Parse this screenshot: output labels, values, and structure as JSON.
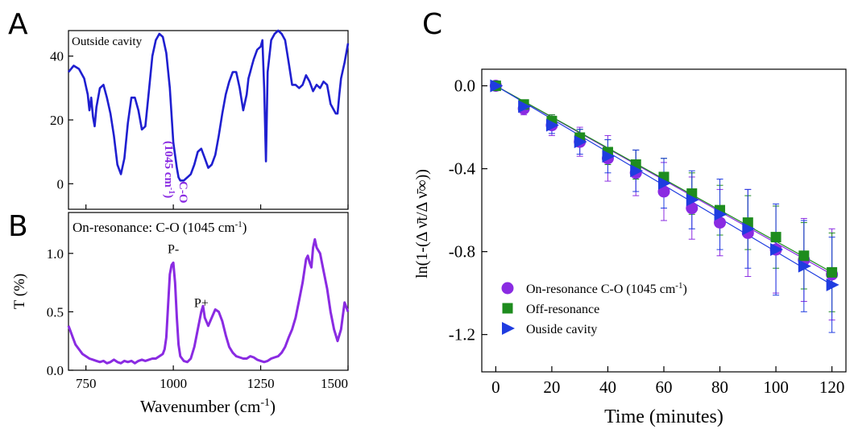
{
  "panel_letters": {
    "a": "A",
    "b": "B",
    "c": "C"
  },
  "panel_a": {
    "label": "Outside cavity"
  },
  "panel_b": {
    "title_main": "On-resonance: C-O (1045 cm",
    "title_sup": "-1",
    "title_end": ")"
  },
  "shared_x_axis": {
    "label": "Wavenumber (cm",
    "label_sup": "-1",
    "label_end": ")"
  },
  "panel_a_annotations": {
    "line1": "C-O",
    "line2_main": "(1045 cm",
    "line2_sup": "-1",
    "line2_end": ")"
  },
  "panel_b_y_axis": {
    "label": "T (%)"
  },
  "panel_c_y_axis": {
    "label": "ln(1-(Δ ν̄t/Δ ν̄∞))"
  },
  "colors": {
    "panel_a_line": "#1f1fd0",
    "panel_b_line": "#8a2be2",
    "on_resonance": "#8a2be2",
    "off_resonance": "#1e8c1e",
    "outside": "#1f3ce0"
  },
  "chart_data": [
    {
      "type": "line",
      "panel": "A",
      "xlim": [
        700,
        1500
      ],
      "ylim": [
        -8,
        48
      ],
      "yticks": [
        0,
        20,
        40
      ],
      "series": [
        {
          "x": [
            700,
            715,
            730,
            745,
            755,
            760,
            765,
            770,
            775,
            780,
            790,
            800,
            810,
            820,
            830,
            840,
            850,
            860,
            870,
            880,
            890,
            900,
            910,
            920,
            930,
            940,
            950,
            960,
            970,
            980,
            990,
            1000,
            1010,
            1015,
            1020,
            1025,
            1030,
            1040,
            1050,
            1060,
            1070,
            1080,
            1090,
            1100,
            1110,
            1120,
            1130,
            1140,
            1150,
            1160,
            1170,
            1180,
            1190,
            1200,
            1210,
            1215,
            1220,
            1225,
            1230,
            1240,
            1250,
            1255,
            1260,
            1265,
            1270,
            1280,
            1290,
            1300,
            1310,
            1320,
            1330,
            1340,
            1350,
            1360,
            1370,
            1380,
            1390,
            1400,
            1410,
            1420,
            1430,
            1440,
            1450,
            1460,
            1465,
            1470,
            1475,
            1480,
            1490,
            1500
          ],
          "values": [
            35,
            37,
            36,
            33,
            28,
            23,
            27,
            21,
            18,
            24,
            30,
            31,
            27,
            22,
            15,
            6,
            3,
            8,
            19,
            27,
            27,
            23,
            17,
            18,
            29,
            40,
            45,
            47,
            46,
            41,
            30,
            13,
            5,
            2,
            1,
            1,
            1,
            2,
            3,
            6,
            10,
            11,
            8,
            5,
            6,
            9,
            15,
            22,
            28,
            32,
            35,
            35,
            30,
            23,
            28,
            33,
            35,
            37,
            39,
            42,
            43,
            45,
            30,
            7,
            35,
            45,
            47,
            48,
            47,
            45,
            38,
            31,
            31,
            30,
            31,
            34,
            32,
            29,
            31,
            30,
            32,
            31,
            25,
            23,
            22,
            22,
            28,
            33,
            38,
            44
          ]
        }
      ]
    },
    {
      "type": "line",
      "panel": "B",
      "xlim": [
        700,
        1500
      ],
      "ylim": [
        0,
        1.35
      ],
      "xticks": [
        750,
        1000,
        1250,
        1500
      ],
      "yticks": [
        0.0,
        0.5,
        1.0
      ],
      "annotations": [
        {
          "text": "P-",
          "x": 1000,
          "y": 0.96
        },
        {
          "text": "P+",
          "x": 1080,
          "y": 0.5
        }
      ],
      "series": [
        {
          "x": [
            700,
            710,
            720,
            730,
            740,
            750,
            760,
            770,
            780,
            790,
            800,
            810,
            820,
            830,
            840,
            850,
            860,
            870,
            880,
            890,
            900,
            910,
            920,
            930,
            940,
            950,
            960,
            970,
            975,
            980,
            985,
            990,
            995,
            1000,
            1005,
            1010,
            1015,
            1020,
            1030,
            1040,
            1050,
            1060,
            1070,
            1080,
            1085,
            1090,
            1100,
            1110,
            1120,
            1130,
            1140,
            1150,
            1160,
            1170,
            1180,
            1190,
            1200,
            1210,
            1220,
            1230,
            1240,
            1250,
            1260,
            1270,
            1280,
            1290,
            1300,
            1310,
            1320,
            1330,
            1340,
            1350,
            1360,
            1370,
            1380,
            1385,
            1390,
            1395,
            1400,
            1405,
            1410,
            1420,
            1430,
            1440,
            1450,
            1460,
            1470,
            1480,
            1490,
            1500
          ],
          "values": [
            0.38,
            0.3,
            0.22,
            0.18,
            0.14,
            0.12,
            0.1,
            0.09,
            0.08,
            0.07,
            0.08,
            0.06,
            0.07,
            0.09,
            0.07,
            0.06,
            0.08,
            0.07,
            0.08,
            0.06,
            0.08,
            0.09,
            0.08,
            0.09,
            0.1,
            0.1,
            0.12,
            0.14,
            0.18,
            0.28,
            0.55,
            0.82,
            0.9,
            0.92,
            0.75,
            0.45,
            0.22,
            0.12,
            0.08,
            0.07,
            0.1,
            0.2,
            0.35,
            0.5,
            0.55,
            0.45,
            0.38,
            0.45,
            0.52,
            0.5,
            0.42,
            0.3,
            0.2,
            0.15,
            0.12,
            0.11,
            0.1,
            0.1,
            0.12,
            0.11,
            0.09,
            0.08,
            0.07,
            0.08,
            0.1,
            0.11,
            0.12,
            0.15,
            0.2,
            0.28,
            0.35,
            0.45,
            0.6,
            0.75,
            0.95,
            0.98,
            0.92,
            0.88,
            1.05,
            1.12,
            1.05,
            1.0,
            0.85,
            0.7,
            0.5,
            0.35,
            0.25,
            0.35,
            0.58,
            0.5
          ]
        }
      ]
    },
    {
      "type": "scatter",
      "panel": "C",
      "xlabel": "Time (minutes)",
      "xlim": [
        -5,
        125
      ],
      "ylim": [
        -1.38,
        0.08
      ],
      "xticks": [
        0,
        20,
        40,
        60,
        80,
        100,
        120
      ],
      "yticks": [
        0.0,
        -0.4,
        -0.8,
        -1.2
      ],
      "legend_position": "bottom-left",
      "x": [
        0,
        10,
        20,
        30,
        40,
        50,
        60,
        70,
        80,
        90,
        100,
        110,
        120
      ],
      "series": [
        {
          "name": "On-resonance C-O (1045 cm",
          "name_sup": "-1",
          "name_end": ")",
          "marker": "circle",
          "values": [
            0.0,
            -0.11,
            -0.19,
            -0.27,
            -0.35,
            -0.42,
            -0.51,
            -0.59,
            -0.66,
            -0.71,
            -0.79,
            -0.84,
            -0.91
          ],
          "errors": [
            0.0,
            0.03,
            0.05,
            0.07,
            0.11,
            0.11,
            0.14,
            0.15,
            0.16,
            0.21,
            0.21,
            0.2,
            0.22
          ],
          "fit": [
            0.0,
            -0.87
          ]
        },
        {
          "name": "Off-resonance",
          "marker": "square",
          "values": [
            0.0,
            -0.09,
            -0.17,
            -0.25,
            -0.32,
            -0.38,
            -0.44,
            -0.52,
            -0.6,
            -0.66,
            -0.73,
            -0.82,
            -0.9
          ],
          "errors": [
            0.0,
            0.02,
            0.03,
            0.04,
            0.06,
            0.07,
            0.09,
            0.1,
            0.12,
            0.13,
            0.15,
            0.16,
            0.19
          ],
          "fit": [
            0.0,
            -0.75
          ]
        },
        {
          "name": "Ouside cavity",
          "marker": "triangle",
          "values": [
            0.0,
            -0.1,
            -0.19,
            -0.27,
            -0.34,
            -0.41,
            -0.47,
            -0.55,
            -0.62,
            -0.69,
            -0.79,
            -0.87,
            -0.96
          ],
          "errors": [
            0.0,
            0.03,
            0.04,
            0.06,
            0.08,
            0.1,
            0.12,
            0.14,
            0.17,
            0.19,
            0.22,
            0.22,
            0.23
          ],
          "fit": [
            0.0,
            -0.8
          ]
        }
      ]
    }
  ]
}
